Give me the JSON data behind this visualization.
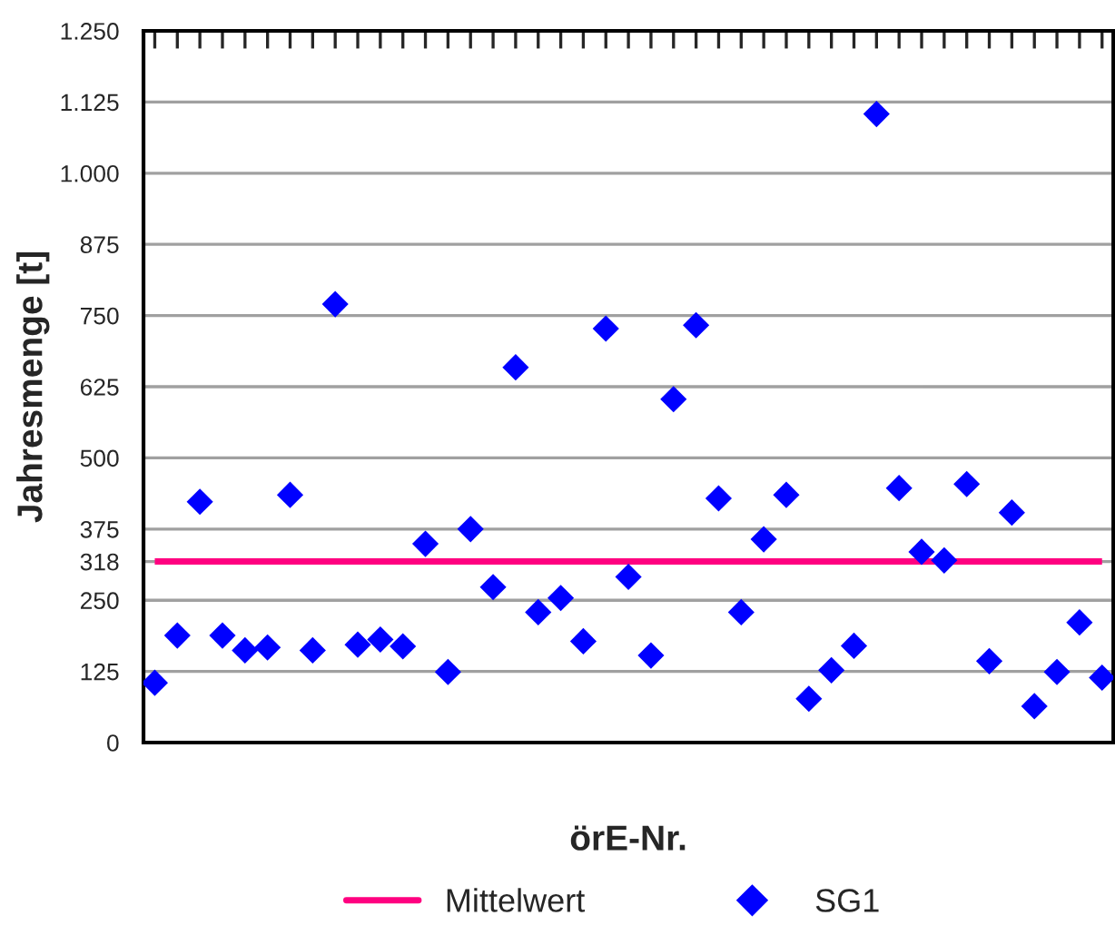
{
  "chart_data": {
    "type": "scatter",
    "xlabel": "örE-Nr.",
    "ylabel": "Jahresmenge [t]",
    "categories": [
      null,
      null,
      null,
      null,
      null,
      null,
      null,
      null,
      null,
      null,
      null,
      null,
      null,
      null,
      null,
      null,
      null,
      null,
      null,
      null,
      null,
      null,
      null,
      null,
      null,
      null,
      null,
      null,
      null,
      null,
      null,
      null,
      null,
      null,
      null,
      null,
      null,
      null,
      null,
      null,
      null,
      null,
      null
    ],
    "series": [
      {
        "name": "SG1",
        "color": "#0000ff",
        "values": [
          105,
          188,
          423,
          188,
          162,
          167,
          435,
          162,
          770,
          172,
          181,
          169,
          349,
          124,
          375,
          273,
          659,
          229,
          254,
          178,
          727,
          291,
          153,
          603,
          733,
          429,
          229,
          357,
          435,
          77,
          127,
          170,
          1104,
          447,
          335,
          320,
          454,
          143,
          404,
          64,
          124,
          211,
          114
        ]
      }
    ],
    "ref_lines": [
      {
        "axis": "y",
        "value": 318,
        "label": "Mittelwert",
        "color": "#ff0080"
      }
    ],
    "ylim": [
      0,
      1250
    ],
    "yticks": [
      0,
      125,
      250,
      {
        "value": 318,
        "label": "318"
      },
      375,
      500,
      625,
      750,
      875,
      {
        "value": 1000,
        "label": "1.000"
      },
      {
        "value": 1125,
        "label": "1.125"
      },
      {
        "value": 1250,
        "label": "1.250"
      }
    ],
    "grid": "y",
    "legend": "bottom",
    "marker": "diamond"
  }
}
